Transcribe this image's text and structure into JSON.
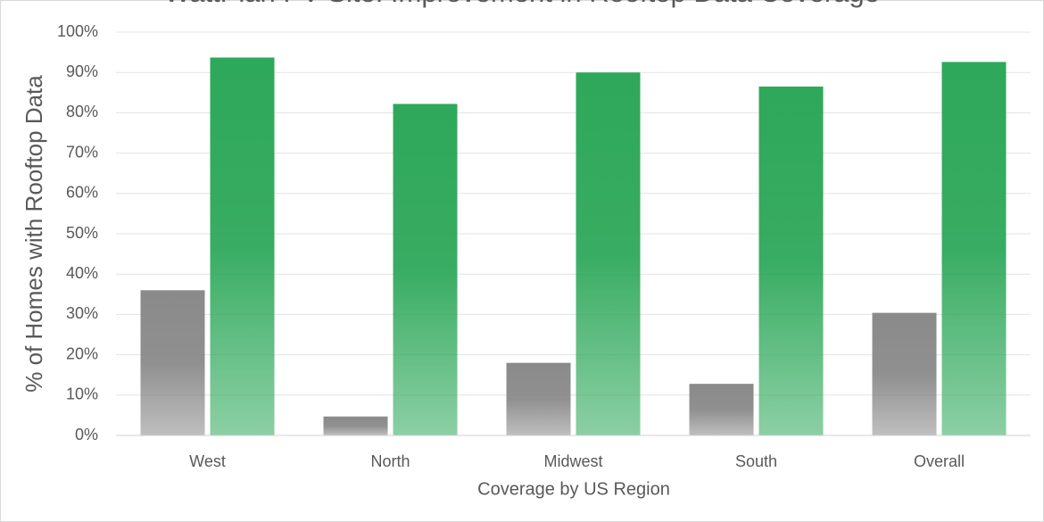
{
  "chart_data": {
    "type": "bar",
    "title": "WattPlan PV Site: Improvement in Rooftop Data Coverage",
    "x_label": "Coverage by US Region",
    "y_label": "% of Homes with Rooftop Data",
    "categories": [
      "West",
      "North",
      "Midwest",
      "South",
      "Overall"
    ],
    "series": [
      {
        "color": "#8a8a8a",
        "values": [
          36,
          4.7,
          18,
          12.8,
          30.4
        ]
      },
      {
        "color": "#2ea85a",
        "values": [
          93.7,
          82.2,
          90,
          86.5,
          92.6
        ]
      }
    ],
    "ylim": [
      0,
      100
    ],
    "yticks": [
      {
        "value": 0,
        "label": "0%"
      },
      {
        "value": 10,
        "label": "10%"
      },
      {
        "value": 20,
        "label": "20%"
      },
      {
        "value": 30,
        "label": "30%"
      },
      {
        "value": 40,
        "label": "40%"
      },
      {
        "value": 50,
        "label": "50%"
      },
      {
        "value": 60,
        "label": "60%"
      },
      {
        "value": 70,
        "label": "70%"
      },
      {
        "value": 80,
        "label": "80%"
      },
      {
        "value": 90,
        "label": "90%"
      },
      {
        "value": 100,
        "label": "100%"
      }
    ],
    "grid": true
  }
}
